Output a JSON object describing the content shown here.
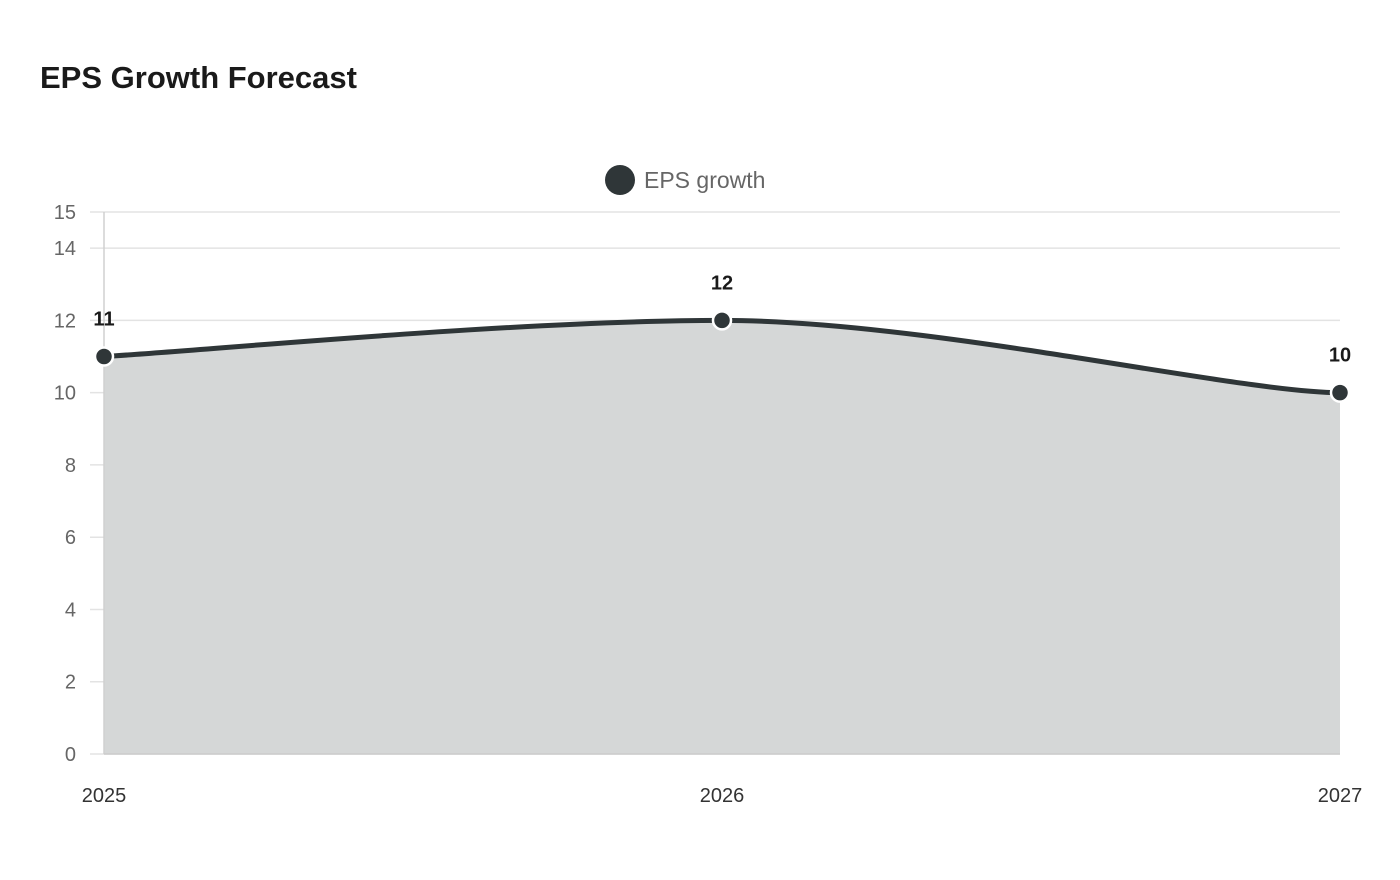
{
  "chart_data": {
    "type": "area",
    "title": "EPS Growth Forecast",
    "xlabel": "",
    "ylabel": "",
    "categories": [
      "2025",
      "2026",
      "2027"
    ],
    "series": [
      {
        "name": "EPS growth",
        "values": [
          11,
          12,
          10
        ]
      }
    ],
    "ylim": [
      0,
      15
    ],
    "yticks": [
      0,
      2,
      4,
      6,
      8,
      10,
      12,
      14,
      15
    ],
    "grid": true,
    "legend_position": "top-center",
    "colors": {
      "line": "#2f3638",
      "area": "#d5d7d7",
      "grid": "#e3e3e3",
      "marker_stroke": "#ffffff"
    }
  }
}
